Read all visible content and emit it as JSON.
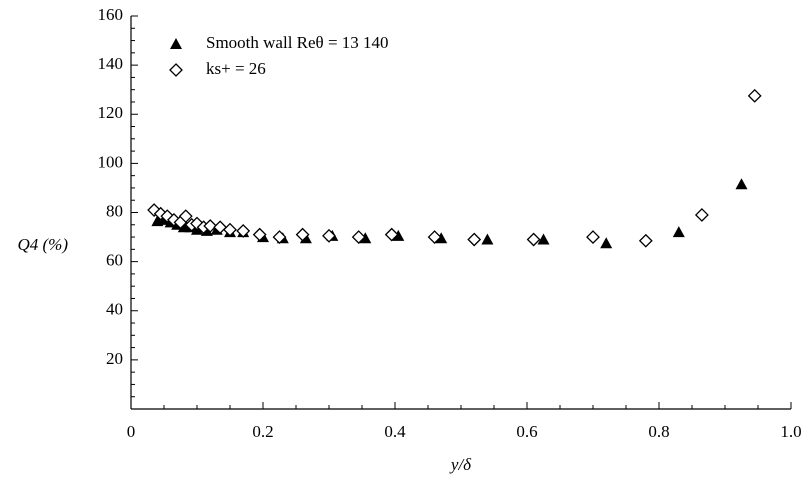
{
  "chart_data": {
    "type": "scatter",
    "xlabel": "y/δ",
    "ylabel": "Q4 (%)",
    "xlim": [
      0,
      1.0
    ],
    "ylim": [
      0,
      160
    ],
    "x_ticks": [
      "0",
      "0.2",
      "0.4",
      "0.6",
      "0.8",
      "1.0"
    ],
    "y_ticks": [
      "20",
      "40",
      "60",
      "80",
      "100",
      "120",
      "140",
      "160"
    ],
    "grid": false,
    "legend_position": "top-left",
    "series": [
      {
        "name": "Smooth wall Reθ = 13 140",
        "marker": "filled-triangle",
        "color": "#000000",
        "points": [
          [
            0.04,
            76.5
          ],
          [
            0.05,
            77
          ],
          [
            0.06,
            76
          ],
          [
            0.07,
            75
          ],
          [
            0.08,
            74
          ],
          [
            0.09,
            74
          ],
          [
            0.1,
            73
          ],
          [
            0.115,
            72.5
          ],
          [
            0.13,
            73
          ],
          [
            0.15,
            72
          ],
          [
            0.17,
            72
          ],
          [
            0.2,
            70
          ],
          [
            0.23,
            69.5
          ],
          [
            0.265,
            69.5
          ],
          [
            0.305,
            70.5
          ],
          [
            0.355,
            69.5
          ],
          [
            0.405,
            70.5
          ],
          [
            0.47,
            69.5
          ],
          [
            0.54,
            69
          ],
          [
            0.625,
            69
          ],
          [
            0.72,
            67.5
          ],
          [
            0.83,
            72
          ],
          [
            0.925,
            91.5
          ]
        ]
      },
      {
        "name": "ks+ = 26",
        "marker": "open-diamond",
        "color": "#000000",
        "points": [
          [
            0.035,
            81
          ],
          [
            0.045,
            79.5
          ],
          [
            0.055,
            78.5
          ],
          [
            0.065,
            77
          ],
          [
            0.075,
            76
          ],
          [
            0.083,
            78.5
          ],
          [
            0.092,
            75
          ],
          [
            0.1,
            75.5
          ],
          [
            0.11,
            74
          ],
          [
            0.12,
            74.5
          ],
          [
            0.135,
            74
          ],
          [
            0.15,
            73
          ],
          [
            0.17,
            72.5
          ],
          [
            0.195,
            71
          ],
          [
            0.225,
            70
          ],
          [
            0.26,
            71
          ],
          [
            0.3,
            70.5
          ],
          [
            0.345,
            70
          ],
          [
            0.395,
            71
          ],
          [
            0.46,
            70
          ],
          [
            0.52,
            69
          ],
          [
            0.61,
            69
          ],
          [
            0.7,
            70
          ],
          [
            0.78,
            68.5
          ],
          [
            0.865,
            79
          ],
          [
            0.945,
            127.5
          ]
        ]
      }
    ]
  }
}
